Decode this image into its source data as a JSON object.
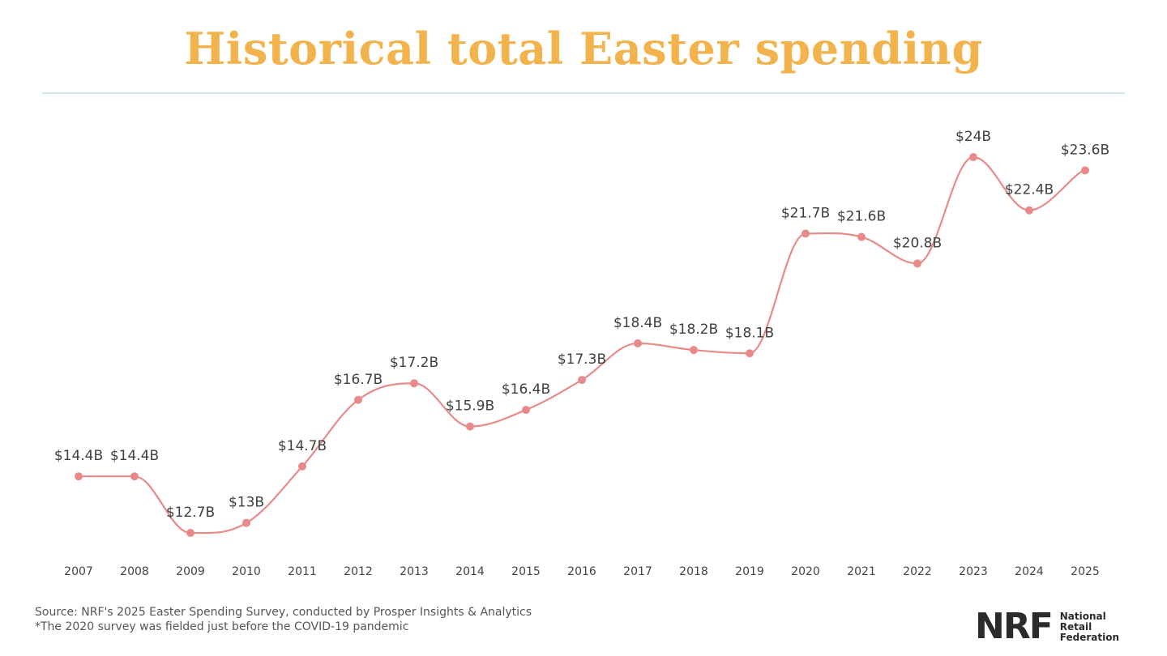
{
  "title": "Historical total Easter spending",
  "chart_data": {
    "type": "line",
    "title": "Historical total Easter spending",
    "xlabel": "",
    "ylabel": "",
    "ylim": [
      12,
      24.5
    ],
    "grid": false,
    "line_color": "#e88a8a",
    "marker_color": "#e88a8a",
    "categories": [
      "2007",
      "2008",
      "2009",
      "2010",
      "2011",
      "2012",
      "2013",
      "2014",
      "2015",
      "2016",
      "2017",
      "2018",
      "2019",
      "2020",
      "2021",
      "2022",
      "2023",
      "2024",
      "2025"
    ],
    "values": [
      14.4,
      14.4,
      12.7,
      13.0,
      14.7,
      16.7,
      17.2,
      15.9,
      16.4,
      17.3,
      18.4,
      18.2,
      18.1,
      21.7,
      21.6,
      20.8,
      24.0,
      22.4,
      23.6
    ],
    "labels": [
      "$14.4B",
      "$14.4B",
      "$12.7B",
      "$13B",
      "$14.7B",
      "$16.7B",
      "$17.2B",
      "$15.9B",
      "$16.4B",
      "$17.3B",
      "$18.4B",
      "$18.2B",
      "$18.1B",
      "$21.7B",
      "$21.6B",
      "$20.8B",
      "$24B",
      "$22.4B",
      "$23.6B"
    ]
  },
  "footer": {
    "source": "Source: NRF's 2025 Easter Spending Survey, conducted by Prosper Insights & Analytics",
    "note": "*The 2020 survey was fielded just before the COVID-19 pandemic"
  },
  "logo": {
    "mark": "NRF",
    "line1": "National",
    "line2": "Retail",
    "line3": "Federation"
  }
}
